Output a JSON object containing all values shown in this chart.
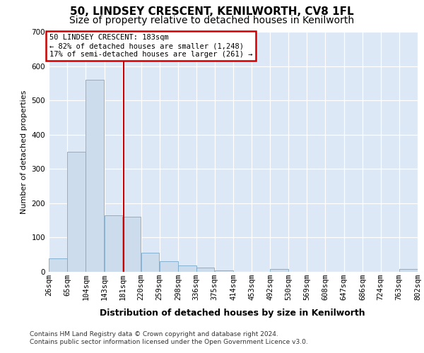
{
  "title": "50, LINDSEY CRESCENT, KENILWORTH, CV8 1FL",
  "subtitle": "Size of property relative to detached houses in Kenilworth",
  "xlabel": "Distribution of detached houses by size in Kenilworth",
  "ylabel": "Number of detached properties",
  "footer_line1": "Contains HM Land Registry data © Crown copyright and database right 2024.",
  "footer_line2": "Contains public sector information licensed under the Open Government Licence v3.0.",
  "annotation_line1": "50 LINDSEY CRESCENT: 183sqm",
  "annotation_line2": "← 82% of detached houses are smaller (1,248)",
  "annotation_line3": "17% of semi-detached houses are larger (261) →",
  "bins": [
    26,
    65,
    104,
    143,
    181,
    220,
    259,
    298,
    336,
    375,
    414,
    453,
    492,
    530,
    569,
    608,
    647,
    686,
    724,
    763,
    802
  ],
  "bin_labels": [
    "26sqm",
    "65sqm",
    "104sqm",
    "143sqm",
    "181sqm",
    "220sqm",
    "259sqm",
    "298sqm",
    "336sqm",
    "375sqm",
    "414sqm",
    "453sqm",
    "492sqm",
    "530sqm",
    "569sqm",
    "608sqm",
    "647sqm",
    "686sqm",
    "724sqm",
    "763sqm",
    "802sqm"
  ],
  "counts": [
    40,
    350,
    560,
    165,
    160,
    55,
    30,
    18,
    12,
    5,
    0,
    0,
    8,
    0,
    0,
    0,
    0,
    0,
    0,
    8
  ],
  "bar_color": "#ccdcec",
  "bar_edge_color": "#7aaaca",
  "vline_color": "#cc0000",
  "vline_x": 183,
  "ylim": [
    0,
    700
  ],
  "yticks": [
    0,
    100,
    200,
    300,
    400,
    500,
    600,
    700
  ],
  "bg_color": "#dce8f5",
  "grid_color": "#ffffff",
  "fig_bg": "#ffffff",
  "title_fontsize": 11,
  "subtitle_fontsize": 10,
  "ylabel_fontsize": 8,
  "tick_fontsize": 7.5,
  "footer_fontsize": 6.5,
  "xlabel_fontsize": 9
}
